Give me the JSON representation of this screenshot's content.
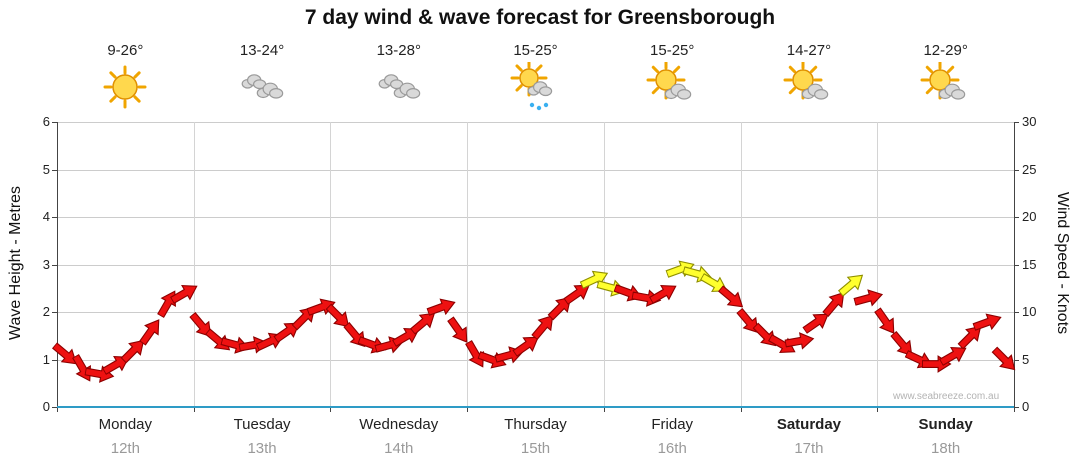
{
  "title": "7 day wind & wave forecast for Greensborough",
  "watermark": "www.seabreeze.com.au",
  "axes": {
    "left_label": "Wave Height - Metres",
    "right_label": "Wind Speed - Knots",
    "left_ticks": [
      0,
      1,
      2,
      3,
      4,
      5,
      6
    ],
    "right_ticks": [
      0,
      5,
      10,
      15,
      20,
      25,
      30
    ]
  },
  "days": [
    {
      "name": "Monday",
      "date": "12th",
      "temp": "9-26°",
      "icon": "sunny",
      "bold": false
    },
    {
      "name": "Tuesday",
      "date": "13th",
      "temp": "13-24°",
      "icon": "cloudy",
      "bold": false
    },
    {
      "name": "Wednesday",
      "date": "14th",
      "temp": "13-28°",
      "icon": "cloudy",
      "bold": false
    },
    {
      "name": "Thursday",
      "date": "15th",
      "temp": "15-25°",
      "icon": "sun-showers",
      "bold": false
    },
    {
      "name": "Friday",
      "date": "16th",
      "temp": "15-25°",
      "icon": "sun-cloud",
      "bold": false
    },
    {
      "name": "Saturday",
      "date": "17th",
      "temp": "14-27°",
      "icon": "sun-cloud",
      "bold": true
    },
    {
      "name": "Sunday",
      "date": "18th",
      "temp": "12-29°",
      "icon": "sun-cloud",
      "bold": true
    }
  ],
  "chart_data": {
    "type": "line",
    "subtype": "wind-direction-arrows",
    "title": "7 day wind & wave forecast for Greensborough",
    "categories": [
      "Monday 12th",
      "Tuesday 13th",
      "Wednesday 14th",
      "Thursday 15th",
      "Friday 16th",
      "Saturday 17th",
      "Sunday 18th"
    ],
    "points_per_day": 8,
    "series": [
      {
        "name": "Wind Speed (knots)",
        "values": [
          5.5,
          4,
          3.5,
          4.5,
          6,
          8,
          11,
          12,
          8.5,
          7,
          6.5,
          6.5,
          7,
          8,
          9.5,
          10.5,
          9.5,
          7.5,
          6.5,
          6.5,
          7.5,
          9,
          10.5,
          8,
          5.5,
          5,
          5.5,
          6.5,
          8.5,
          10.5,
          12,
          13.5,
          12.5,
          12,
          11.5,
          12,
          14.5,
          14,
          13,
          11.5,
          9,
          7.5,
          6.5,
          7,
          9,
          11,
          13,
          11.5,
          9,
          6.5,
          5,
          4.5,
          5.5,
          7.5,
          9,
          5
        ]
      },
      {
        "name": "Wind Direction (deg, 0 = pointing right)",
        "values": [
          40,
          60,
          10,
          -30,
          -45,
          -55,
          -60,
          -30,
          50,
          40,
          15,
          -10,
          -25,
          -35,
          -45,
          -20,
          45,
          50,
          20,
          -15,
          -30,
          -40,
          -20,
          55,
          60,
          20,
          -15,
          -35,
          -50,
          -45,
          -35,
          -25,
          15,
          20,
          10,
          -30,
          -20,
          15,
          30,
          40,
          50,
          45,
          30,
          -10,
          -35,
          -50,
          -40,
          -15,
          55,
          50,
          25,
          0,
          -30,
          -45,
          -20,
          45
        ]
      }
    ],
    "ylim_left_wave_metres": [
      0,
      6
    ],
    "ylim_right_wind_knots": [
      0,
      30
    ],
    "arrow_color_normal": "#ee1111",
    "arrow_color_strong": "#ffff2e",
    "arrow_outline_normal": "#8d0000",
    "arrow_outline_strong": "#8f8f00",
    "strong_threshold_knots": 12.5,
    "grid": true,
    "legend": "none"
  }
}
